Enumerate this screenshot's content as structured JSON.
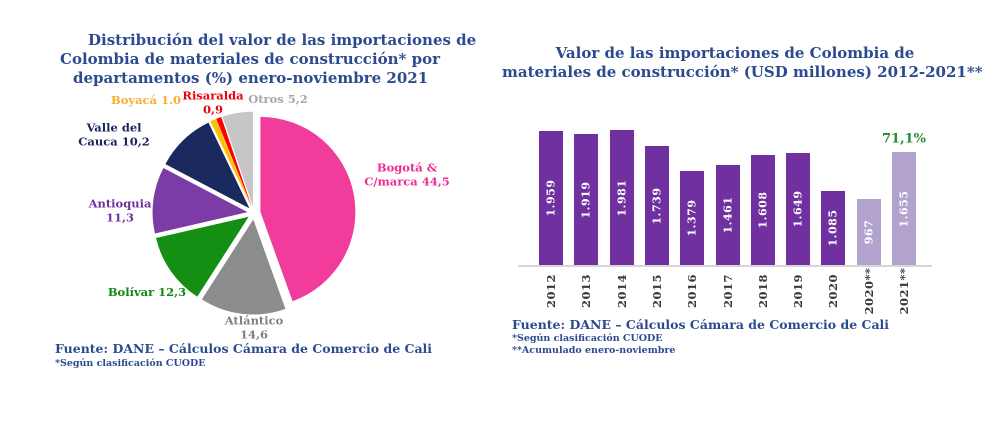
{
  "page": {
    "background": "#FFFFFF"
  },
  "chart_data": [
    {
      "type": "pie",
      "title": "Distribución del valor de las importaciones de Colombia de materiales de construcción* por departamentos (%) enero-noviembre 2021",
      "title_lines": [
        "Distribución del valor de las importaciones de",
        "Colombia de materiales de construcción* por",
        "departamentos (%) enero-noviembre 2021"
      ],
      "title_color": "#2C4A90",
      "unit": "percent",
      "slices": [
        {
          "id": "bogota",
          "name": "Bogotá & C/marca",
          "value": 44.5,
          "color": "#F13C9C",
          "label": "Bogotá &\nC/marca 44,5",
          "label_color": "#EE2D93"
        },
        {
          "id": "atlantico",
          "name": "Atlántico",
          "value": 14.6,
          "color": "#8C8C8C",
          "label": "Atlántico\n14,6",
          "label_color": "#7F7F7F"
        },
        {
          "id": "bolivar",
          "name": "Bolívar",
          "value": 12.3,
          "color": "#148F14",
          "label": "Bolívar 12,3",
          "label_color": "#0E8A0E"
        },
        {
          "id": "antioquia",
          "name": "Antioquia",
          "value": 11.3,
          "color": "#7B3CA6",
          "label": "Antioquia\n11,3",
          "label_color": "#7030A0"
        },
        {
          "id": "valle",
          "name": "Valle del Cauca",
          "value": 10.2,
          "color": "#1A2A5E",
          "label": "Valle del\nCauca 10,2",
          "label_color": "#17255C"
        },
        {
          "id": "boyaca",
          "name": "Boyacá",
          "value": 1.0,
          "color": "#FFC000",
          "label": "Boyacá 1.0",
          "label_color": "#FBAD2E"
        },
        {
          "id": "risaralda",
          "name": "Risaralda",
          "value": 0.9,
          "color": "#FF0000",
          "label": "Risaralda\n0,9",
          "label_color": "#E8000D"
        },
        {
          "id": "otros",
          "name": "Otros",
          "value": 5.2,
          "color": "#C6C6C8",
          "label": "Otros 5,2",
          "label_color": "#A6A6A6"
        }
      ],
      "source": "Fuente: DANE – Cálculos Cámara de Comercio de Cali",
      "footnotes": [
        "*Según clasificación CUODE"
      ]
    },
    {
      "type": "bar",
      "title": "Valor de las importaciones de Colombia de materiales de construcción* (USD millones) 2012-2021**",
      "title_lines": [
        "Valor de las importaciones de Colombia de",
        "materiales de construcción* (USD millones) 2012-2021**"
      ],
      "title_color": "#2C4A90",
      "categories": [
        "2012",
        "2013",
        "2014",
        "2015",
        "2016",
        "2017",
        "2018",
        "2019",
        "2020",
        "2020**",
        "2021**"
      ],
      "bars": [
        {
          "label": "2012",
          "value": 1959,
          "display": "1.959",
          "color": "#7030A0"
        },
        {
          "label": "2013",
          "value": 1919,
          "display": "1.919",
          "color": "#7030A0"
        },
        {
          "label": "2014",
          "value": 1981,
          "display": "1.981",
          "color": "#7030A0"
        },
        {
          "label": "2015",
          "value": 1739,
          "display": "1.739",
          "color": "#7030A0"
        },
        {
          "label": "2016",
          "value": 1379,
          "display": "1.379",
          "color": "#7030A0"
        },
        {
          "label": "2017",
          "value": 1461,
          "display": "1.461",
          "color": "#7030A0"
        },
        {
          "label": "2018",
          "value": 1608,
          "display": "1.608",
          "color": "#7030A0"
        },
        {
          "label": "2019",
          "value": 1649,
          "display": "1.649",
          "color": "#7030A0"
        },
        {
          "label": "2020",
          "value": 1085,
          "display": "1.085",
          "color": "#7030A0"
        },
        {
          "label": "2020**",
          "value": 967,
          "display": "967",
          "color": "#B2A2CE"
        },
        {
          "label": "2021**",
          "value": 1655,
          "display": "1.655",
          "color": "#B2A2CE"
        }
      ],
      "annotation": {
        "text": "71,1%",
        "color": "#218A3C",
        "attached_to": "2021**"
      },
      "value_label_color": "#FFFFFF",
      "axis_label_color": "#3A3A3A",
      "source": "Fuente: DANE – Cálculos Cámara de Comercio de Cali",
      "footnotes": [
        "*Según clasificación CUODE",
        "**Acumulado enero-noviembre"
      ]
    }
  ]
}
